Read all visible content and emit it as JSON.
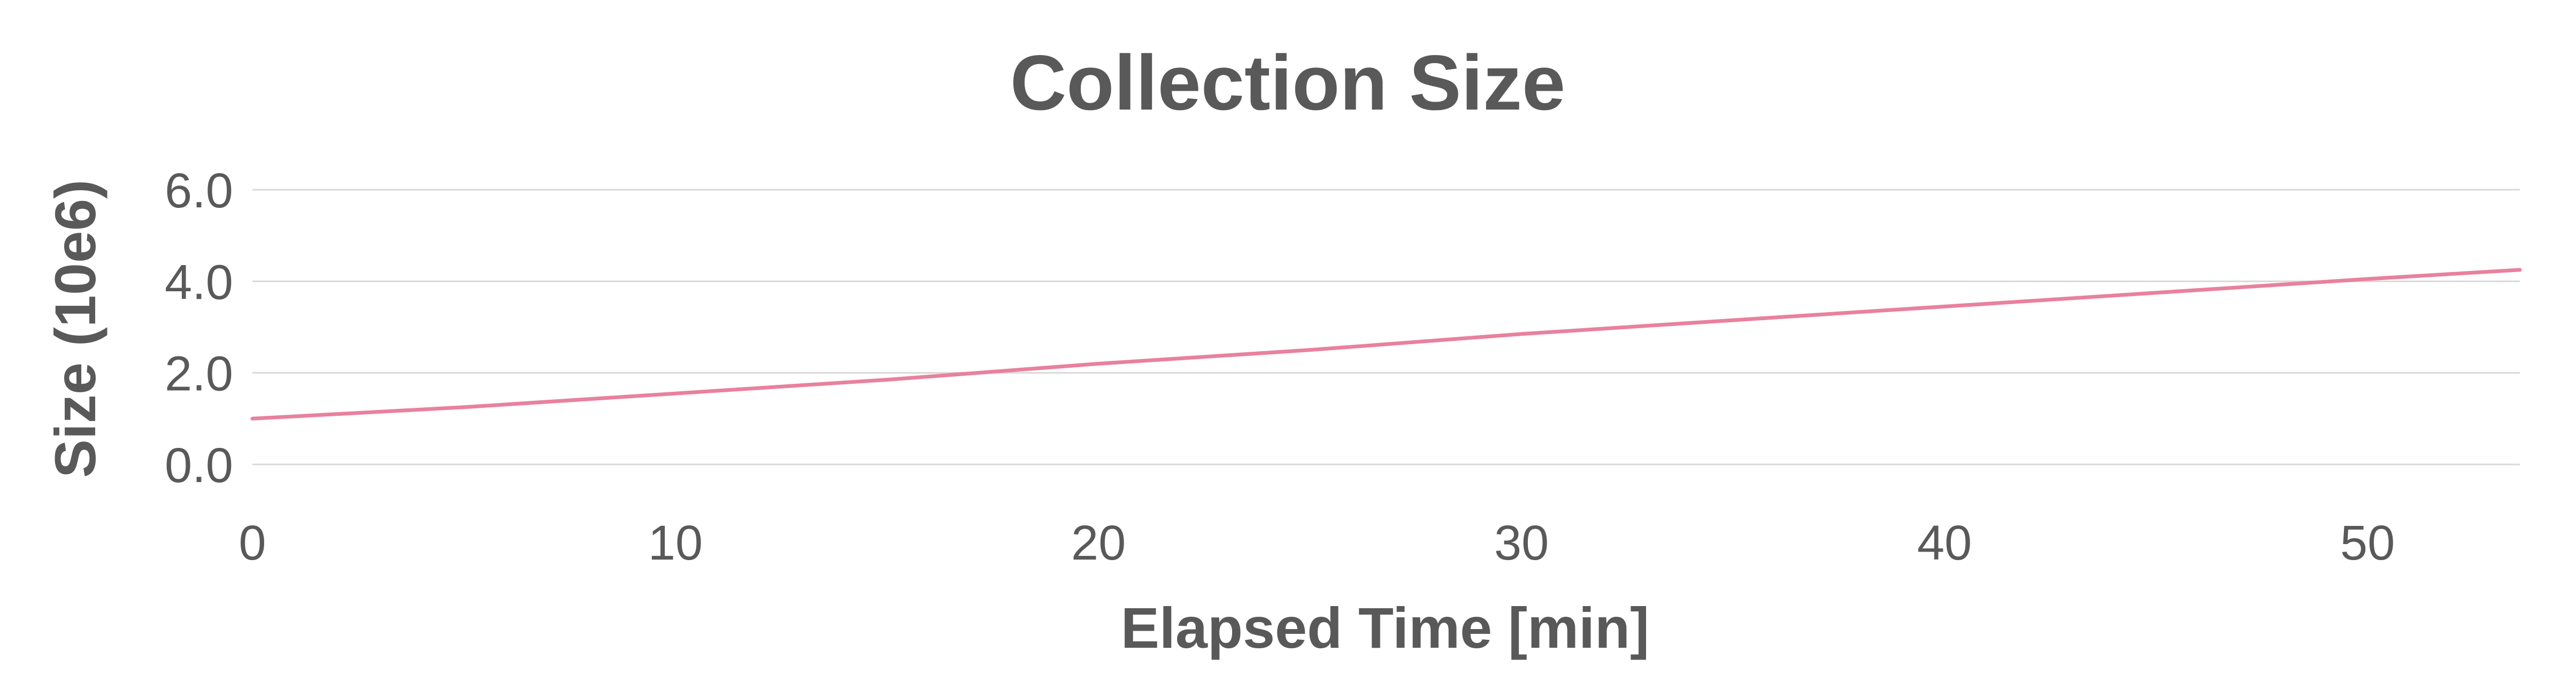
{
  "chart_data": {
    "type": "line",
    "title": "Collection Size",
    "xlabel": "Elapsed Time [min]",
    "ylabel": "Size (10e6)",
    "xlim": [
      0,
      53.6
    ],
    "ylim": [
      0,
      6
    ],
    "x_ticks": [
      0,
      10,
      20,
      30,
      40,
      50
    ],
    "x_tick_labels": [
      "0",
      "10",
      "20",
      "30",
      "40",
      "50"
    ],
    "y_ticks": [
      0,
      2,
      4,
      6
    ],
    "y_tick_labels": [
      "0.0",
      "2.0",
      "4.0",
      "6.0"
    ],
    "grid": true,
    "legend": "none",
    "series": [
      {
        "color": "#e8819e",
        "x": [
          0,
          5,
          10,
          15,
          20,
          25,
          30,
          35,
          40,
          45,
          50,
          53.6
        ],
        "y": [
          1.0,
          1.25,
          1.55,
          1.85,
          2.2,
          2.5,
          2.85,
          3.15,
          3.45,
          3.75,
          4.05,
          4.25
        ]
      }
    ]
  }
}
